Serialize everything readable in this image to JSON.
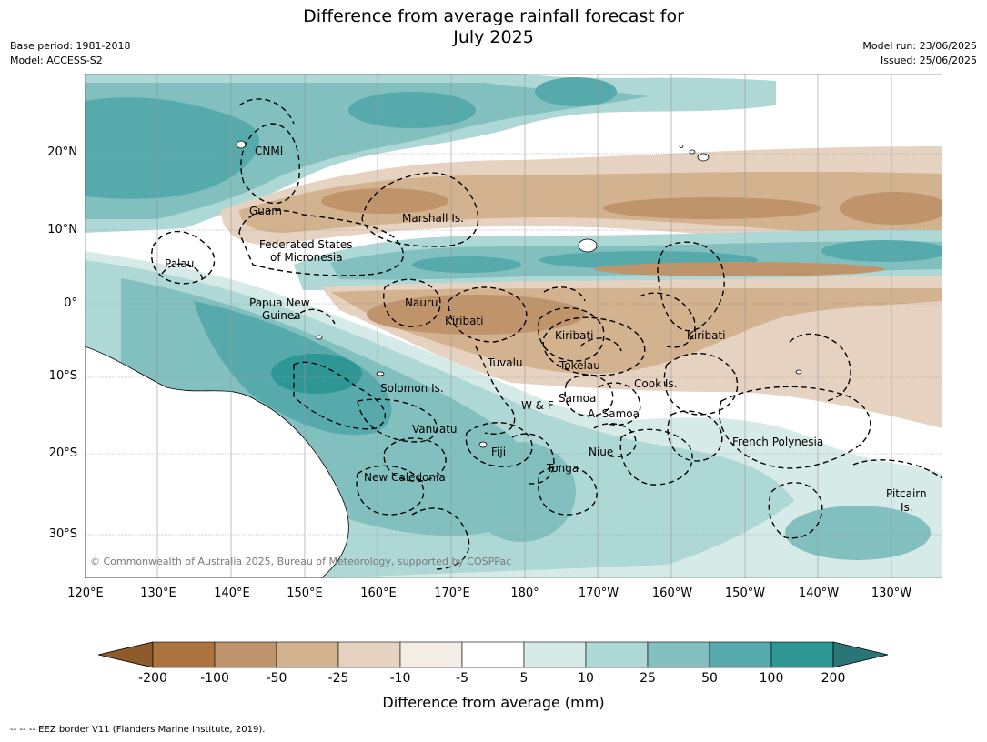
{
  "title_line1": "Difference from average rainfall forecast for",
  "title_line2": "July 2025",
  "meta_left": [
    "Base period: 1981-2018",
    "Model: ACCESS-S2"
  ],
  "meta_right": [
    "Model run: 23/06/2025",
    "Issued: 25/06/2025"
  ],
  "lat_labels": [
    "20°N",
    "10°N",
    "0°",
    "10°S",
    "20°S",
    "30°S"
  ],
  "lon_labels": [
    "120°E",
    "130°E",
    "140°E",
    "150°E",
    "160°E",
    "170°E",
    "180°",
    "170°W",
    "160°W",
    "150°W",
    "140°W",
    "130°W"
  ],
  "regions": {
    "cnmi": "CNMI",
    "guam": "Guam",
    "marshall": "Marshall Is.",
    "fsm_1": "Federated States",
    "fsm_2": "of Micronesia",
    "palau": "Palau",
    "png_1": "Papua New",
    "png_2": "Guinea",
    "nauru": "Nauru",
    "kiribati_w": "Kiribati",
    "kiribati_c": "Kiribati",
    "kiribati_e": "Kiribati",
    "tuvalu": "Tuvalu",
    "tokelau": "Tokelau",
    "cook": "Cook Is.",
    "solomon": "Solomon Is.",
    "wf": "W & F",
    "samoa": "Samoa",
    "asamoa": "A. Samoa",
    "vanuatu": "Vanuatu",
    "fiji": "Fiji",
    "niue": "Niue",
    "tonga": "Tonga",
    "new_caledonia": "New Caledonia",
    "french_polynesia": "French Polynesia",
    "pitcairn_1": "Pitcairn",
    "pitcairn_2": "Is."
  },
  "copyright": "© Commonwealth of Australia 2025, Bureau of Meteorology, supported by COSPPac",
  "colorbar": {
    "ticks": [
      "-200",
      "-100",
      "-50",
      "-25",
      "-10",
      "-5",
      "5",
      "10",
      "25",
      "50",
      "100",
      "200"
    ],
    "colors": [
      "#8c5a2b",
      "#ad7440",
      "#c0946a",
      "#d3b290",
      "#e6d2c0",
      "#f4ede6",
      "#ffffff",
      "#d6ebe8",
      "#add8d5",
      "#82c0bf",
      "#56aaab",
      "#2f9696",
      "#2a7676"
    ],
    "label": "Difference from average (mm)"
  },
  "footnote": "--  --  -- EEZ border V11 (Flanders Marine Institute, 2019)."
}
